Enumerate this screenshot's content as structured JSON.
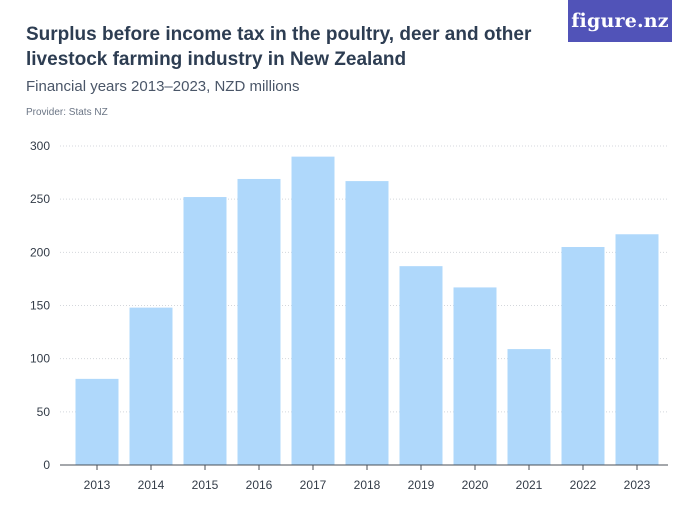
{
  "header": {
    "title": "Surplus before income tax in the poultry, deer and other livestock farming industry in New Zealand",
    "subtitle": "Financial years 2013–2023, NZD millions",
    "provider": "Provider: Stats NZ",
    "logo_text": "figure.nz"
  },
  "colors": {
    "bar": "#afd8fb",
    "grid": "#d4d7dc",
    "axis": "#4a4f57",
    "logo_bg": "#5153b8"
  },
  "chart_data": {
    "type": "bar",
    "title": "Surplus before income tax in the poultry, deer and other livestock farming industry in New Zealand",
    "subtitle": "Financial years 2013–2023, NZD millions",
    "xlabel": "",
    "ylabel": "",
    "categories": [
      "2013",
      "2014",
      "2015",
      "2016",
      "2017",
      "2018",
      "2019",
      "2020",
      "2021",
      "2022",
      "2023"
    ],
    "values": [
      81,
      148,
      252,
      269,
      290,
      267,
      187,
      167,
      109,
      205,
      217
    ],
    "ylim": [
      0,
      300
    ],
    "yticks": [
      0,
      50,
      100,
      150,
      200,
      250,
      300
    ],
    "grid": true,
    "legend": "none"
  }
}
